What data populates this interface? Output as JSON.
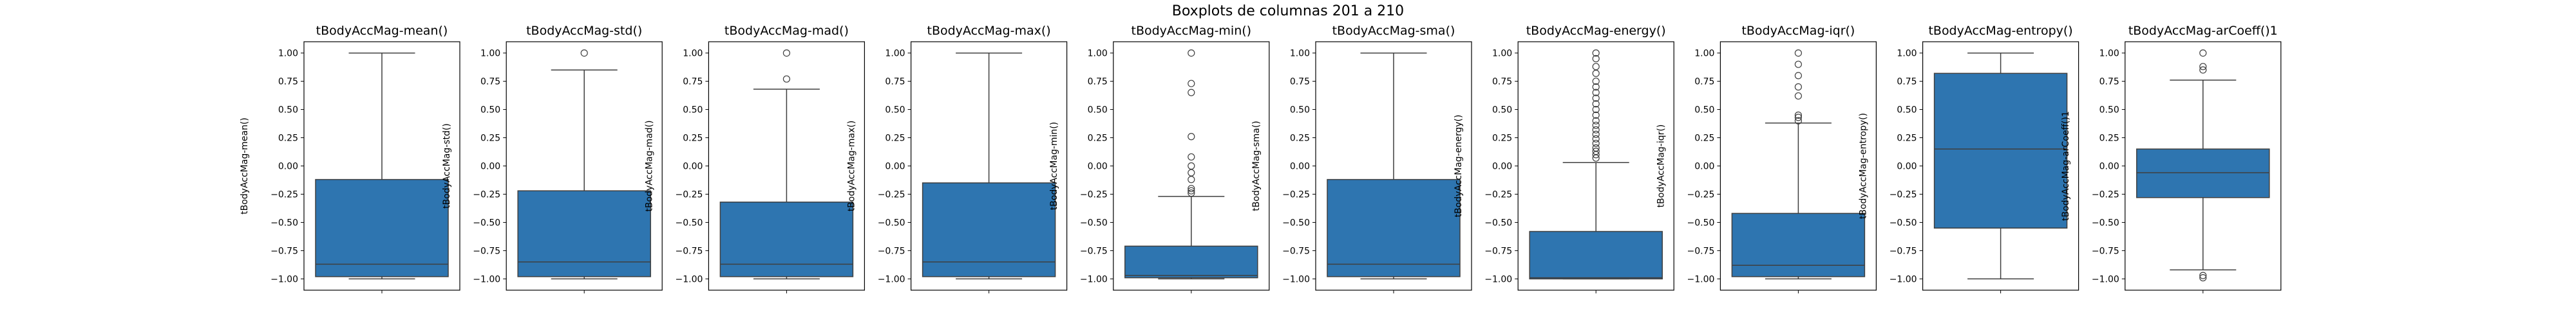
{
  "figure": {
    "suptitle": "Boxplots de columnas 201 a 210"
  },
  "style": {
    "box_fill": "#2e75b0",
    "line": "#3f3f3f",
    "flier_edge": "#3f3f3f"
  },
  "chart_data": [
    {
      "type": "box",
      "title": "tBodyAccMag-mean()",
      "ylabel": "tBodyAccMag-mean()",
      "ylim": [
        -1.1,
        1.1
      ],
      "yticks": [
        1.0,
        0.75,
        0.5,
        0.25,
        0.0,
        -0.25,
        -0.5,
        -0.75,
        -1.0
      ],
      "yticklabels": [
        "1.00",
        "0.75",
        "0.50",
        "0.25",
        "0.00",
        "−0.25",
        "−0.50",
        "−0.75",
        "−1.00"
      ],
      "whisker_low": -1.0,
      "q1": -0.98,
      "median": -0.87,
      "q3": -0.12,
      "whisker_high": 1.0,
      "fliers": []
    },
    {
      "type": "box",
      "title": "tBodyAccMag-std()",
      "ylabel": "tBodyAccMag-std()",
      "ylim": [
        -1.1,
        1.1
      ],
      "yticks": [
        1.0,
        0.75,
        0.5,
        0.25,
        0.0,
        -0.25,
        -0.5,
        -0.75,
        -1.0
      ],
      "yticklabels": [
        "1.00",
        "0.75",
        "0.50",
        "0.25",
        "0.00",
        "−0.25",
        "−0.50",
        "−0.75",
        "−1.00"
      ],
      "whisker_low": -1.0,
      "q1": -0.98,
      "median": -0.85,
      "q3": -0.22,
      "whisker_high": 0.85,
      "fliers": [
        1.0
      ]
    },
    {
      "type": "box",
      "title": "tBodyAccMag-mad()",
      "ylabel": "tBodyAccMag-mad()",
      "ylim": [
        -1.1,
        1.1
      ],
      "yticks": [
        1.0,
        0.75,
        0.5,
        0.25,
        0.0,
        -0.25,
        -0.5,
        -0.75,
        -1.0
      ],
      "yticklabels": [
        "1.00",
        "0.75",
        "0.50",
        "0.25",
        "0.00",
        "−0.25",
        "−0.50",
        "−0.75",
        "−1.00"
      ],
      "whisker_low": -1.0,
      "q1": -0.98,
      "median": -0.87,
      "q3": -0.32,
      "whisker_high": 0.68,
      "fliers": [
        0.77,
        1.0
      ]
    },
    {
      "type": "box",
      "title": "tBodyAccMag-max()",
      "ylabel": "tBodyAccMag-max()",
      "ylim": [
        -1.1,
        1.1
      ],
      "yticks": [
        1.0,
        0.75,
        0.5,
        0.25,
        0.0,
        -0.25,
        -0.5,
        -0.75,
        -1.0
      ],
      "yticklabels": [
        "1.00",
        "0.75",
        "0.50",
        "0.25",
        "0.00",
        "−0.25",
        "−0.50",
        "−0.75",
        "−1.00"
      ],
      "whisker_low": -1.0,
      "q1": -0.98,
      "median": -0.85,
      "q3": -0.15,
      "whisker_high": 1.0,
      "fliers": []
    },
    {
      "type": "box",
      "title": "tBodyAccMag-min()",
      "ylabel": "tBodyAccMag-min()",
      "ylim": [
        -1.1,
        1.1
      ],
      "yticks": [
        1.0,
        0.75,
        0.5,
        0.25,
        0.0,
        -0.25,
        -0.5,
        -0.75,
        -1.0
      ],
      "yticklabels": [
        "1.00",
        "0.75",
        "0.50",
        "0.25",
        "0.00",
        "−0.25",
        "−0.50",
        "−0.75",
        "−1.00"
      ],
      "whisker_low": -1.0,
      "q1": -0.99,
      "median": -0.97,
      "q3": -0.71,
      "whisker_high": -0.27,
      "fliers": [
        -0.24,
        -0.22,
        -0.2,
        -0.12,
        -0.06,
        0.0,
        0.08,
        0.26,
        0.65,
        0.73,
        1.0
      ]
    },
    {
      "type": "box",
      "title": "tBodyAccMag-sma()",
      "ylabel": "tBodyAccMag-sma()",
      "ylim": [
        -1.1,
        1.1
      ],
      "yticks": [
        1.0,
        0.75,
        0.5,
        0.25,
        0.0,
        -0.25,
        -0.5,
        -0.75,
        -1.0
      ],
      "yticklabels": [
        "1.00",
        "0.75",
        "0.50",
        "0.25",
        "0.00",
        "−0.25",
        "−0.50",
        "−0.75",
        "−1.00"
      ],
      "whisker_low": -1.0,
      "q1": -0.98,
      "median": -0.87,
      "q3": -0.12,
      "whisker_high": 1.0,
      "fliers": []
    },
    {
      "type": "box",
      "title": "tBodyAccMag-energy()",
      "ylabel": "tBodyAccMag-energy()",
      "ylim": [
        -1.1,
        1.1
      ],
      "yticks": [
        1.0,
        0.75,
        0.5,
        0.25,
        0.0,
        -0.25,
        -0.5,
        -0.75,
        -1.0
      ],
      "yticklabels": [
        "1.00",
        "0.75",
        "0.50",
        "0.25",
        "0.00",
        "−0.25",
        "−0.50",
        "−0.75",
        "−1.00"
      ],
      "whisker_low": -1.0,
      "q1": -1.0,
      "median": -0.99,
      "q3": -0.58,
      "whisker_high": 0.03,
      "fliers": [
        0.07,
        0.1,
        0.13,
        0.16,
        0.2,
        0.24,
        0.28,
        0.32,
        0.36,
        0.4,
        0.45,
        0.5,
        0.55,
        0.6,
        0.65,
        0.7,
        0.75,
        0.82,
        0.88,
        0.95,
        1.0
      ]
    },
    {
      "type": "box",
      "title": "tBodyAccMag-iqr()",
      "ylabel": "tBodyAccMag-iqr()",
      "ylim": [
        -1.1,
        1.1
      ],
      "yticks": [
        1.0,
        0.75,
        0.5,
        0.25,
        0.0,
        -0.25,
        -0.5,
        -0.75,
        -1.0
      ],
      "yticklabels": [
        "1.00",
        "0.75",
        "0.50",
        "0.25",
        "0.00",
        "−0.25",
        "−0.50",
        "−0.75",
        "−1.00"
      ],
      "whisker_low": -1.0,
      "q1": -0.98,
      "median": -0.88,
      "q3": -0.42,
      "whisker_high": 0.38,
      "fliers": [
        0.4,
        0.43,
        0.45,
        0.62,
        0.7,
        0.8,
        0.9,
        1.0
      ]
    },
    {
      "type": "box",
      "title": "tBodyAccMag-entropy()",
      "ylabel": "tBodyAccMag-entropy()",
      "ylim": [
        -1.1,
        1.1
      ],
      "yticks": [
        1.0,
        0.75,
        0.5,
        0.25,
        0.0,
        -0.25,
        -0.5,
        -0.75,
        -1.0
      ],
      "yticklabels": [
        "1.00",
        "0.75",
        "0.50",
        "0.25",
        "0.00",
        "−0.25",
        "−0.50",
        "−0.75",
        "−1.00"
      ],
      "whisker_low": -1.0,
      "q1": -0.55,
      "median": 0.15,
      "q3": 0.82,
      "whisker_high": 1.0,
      "fliers": []
    },
    {
      "type": "box",
      "title": "tBodyAccMag-arCoeff()1",
      "ylabel": "tBodyAccMag-arCoeff()1",
      "ylim": [
        -1.1,
        1.1
      ],
      "yticks": [
        1.0,
        0.75,
        0.5,
        0.25,
        0.0,
        -0.25,
        -0.5,
        -0.75,
        -1.0
      ],
      "yticklabels": [
        "1.00",
        "0.75",
        "0.50",
        "0.25",
        "0.00",
        "−0.25",
        "−0.50",
        "−0.75",
        "−1.00"
      ],
      "whisker_low": -0.92,
      "q1": -0.28,
      "median": -0.06,
      "q3": 0.15,
      "whisker_high": 0.76,
      "fliers": [
        -0.97,
        -0.99,
        0.85,
        0.88,
        1.0
      ]
    }
  ]
}
